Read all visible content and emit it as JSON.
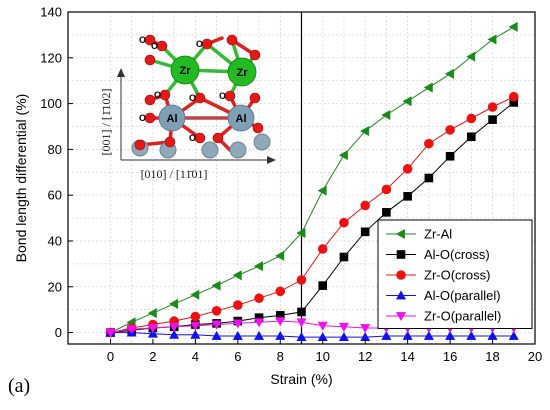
{
  "chart_data": {
    "type": "line",
    "panel_label": "(a)",
    "xlabel": "Strain (%)",
    "ylabel": "Bond length differential (%)",
    "xlim": [
      -2,
      20
    ],
    "ylim": [
      -5,
      140
    ],
    "xticks": [
      0,
      2,
      4,
      6,
      8,
      10,
      12,
      14,
      16,
      18,
      20
    ],
    "yticks": [
      0,
      20,
      40,
      60,
      80,
      100,
      120,
      140
    ],
    "grid": true,
    "vline_x": 9,
    "legend_position": "lower-right",
    "x": [
      0,
      1,
      2,
      3,
      4,
      5,
      6,
      7,
      8,
      9,
      10,
      11,
      12,
      13,
      14,
      15,
      16,
      17,
      18,
      19
    ],
    "series": [
      {
        "name": "Zr-Al",
        "color": "#1a8a1a",
        "marker": "triangle-left",
        "values": [
          0,
          4.5,
          8.5,
          12.5,
          16.5,
          20.5,
          25,
          29,
          33.5,
          43.5,
          62,
          77.5,
          88,
          95,
          101,
          107,
          113,
          120.5,
          128,
          133.5
        ]
      },
      {
        "name": "Al-O(cross)",
        "color": "#000000",
        "marker": "square",
        "values": [
          0,
          1,
          2,
          2.5,
          3.5,
          4,
          5,
          6.5,
          7.5,
          9,
          20.5,
          33,
          44,
          52.5,
          59.5,
          67.5,
          77,
          85.5,
          93,
          100.5
        ]
      },
      {
        "name": "Zr-O(cross)",
        "color": "#ee1111",
        "marker": "circle",
        "values": [
          0,
          2,
          3.5,
          5,
          7,
          9.5,
          12,
          15,
          18,
          23,
          36.5,
          48,
          55.5,
          62.5,
          71.5,
          82.5,
          88.5,
          93.5,
          98.5,
          103
        ]
      },
      {
        "name": "Al-O(parallel)",
        "color": "#1111ee",
        "marker": "triangle-up",
        "values": [
          0,
          0,
          -0.5,
          -1,
          -1,
          -1.5,
          -1.5,
          -1.5,
          -1.5,
          -2,
          -2,
          -2,
          -2,
          -1.5,
          -1.5,
          -1.5,
          -1.5,
          -1.5,
          -1.5,
          -1.5
        ]
      },
      {
        "name": "Zr-O(parallel)",
        "color": "#ee11ee",
        "marker": "triangle-down",
        "values": [
          0,
          1.5,
          2,
          2.5,
          3,
          3.5,
          4,
          4.5,
          5,
          4.5,
          3,
          2.5,
          2,
          2,
          2,
          2,
          2,
          2,
          2,
          2
        ]
      }
    ]
  },
  "inset": {
    "y_axis_label": "[001] / [1̄102]",
    "x_axis_label": "[010] / [11̄01]",
    "atoms": {
      "zr": "Zr",
      "al": "Al",
      "o": "O"
    }
  }
}
